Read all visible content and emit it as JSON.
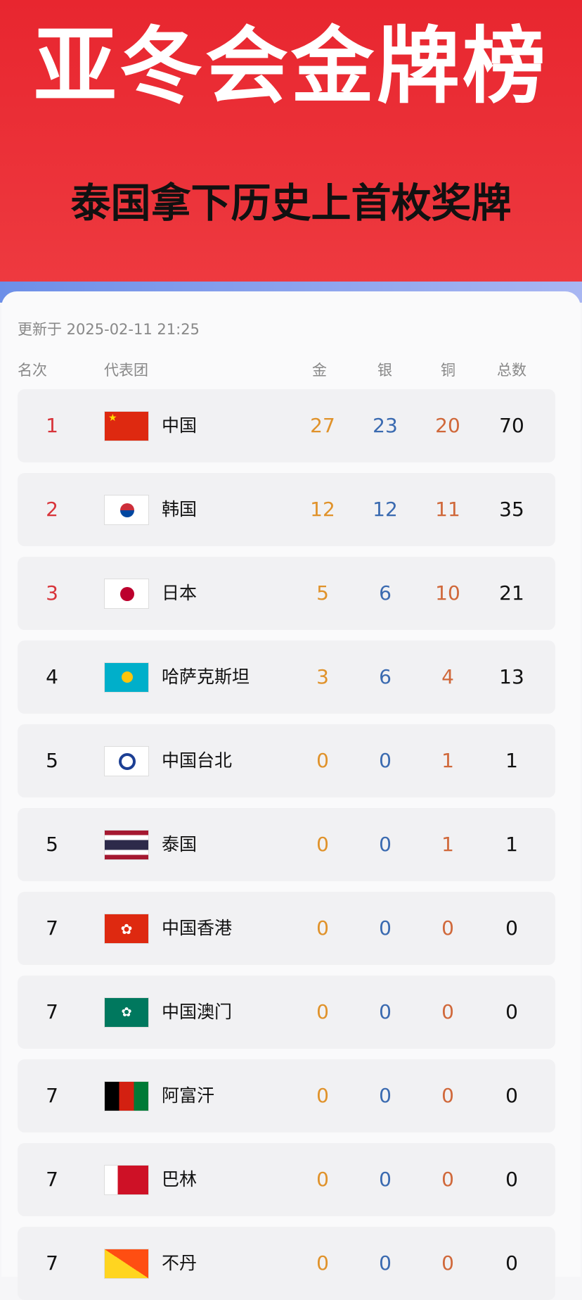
{
  "header": {
    "title": "亚冬会金牌榜",
    "subtitle": "泰国拿下历史上首枚奖牌"
  },
  "updated": "更新于 2025-02-11 21:25",
  "columns": {
    "rank": "名次",
    "team": "代表团",
    "gold": "金",
    "silver": "银",
    "bronze": "铜",
    "total": "总数"
  },
  "colors": {
    "banner": "#e8262f",
    "rank_top3": "#d8343a",
    "gold": "#e0922a",
    "silver": "#3a6ab0",
    "bronze": "#d0683a"
  },
  "rows": [
    {
      "rank": "1",
      "team": "中国",
      "flag": "china-flag",
      "gold": "27",
      "silver": "23",
      "bronze": "20",
      "total": "70"
    },
    {
      "rank": "2",
      "team": "韩国",
      "flag": "south-korea-flag",
      "gold": "12",
      "silver": "12",
      "bronze": "11",
      "total": "35"
    },
    {
      "rank": "3",
      "team": "日本",
      "flag": "japan-flag",
      "gold": "5",
      "silver": "6",
      "bronze": "10",
      "total": "21"
    },
    {
      "rank": "4",
      "team": "哈萨克斯坦",
      "flag": "kazakhstan-flag",
      "gold": "3",
      "silver": "6",
      "bronze": "4",
      "total": "13"
    },
    {
      "rank": "5",
      "team": "中国台北",
      "flag": "chinese-taipei-flag",
      "gold": "0",
      "silver": "0",
      "bronze": "1",
      "total": "1"
    },
    {
      "rank": "5",
      "team": "泰国",
      "flag": "thailand-flag",
      "gold": "0",
      "silver": "0",
      "bronze": "1",
      "total": "1"
    },
    {
      "rank": "7",
      "team": "中国香港",
      "flag": "hong-kong-flag",
      "gold": "0",
      "silver": "0",
      "bronze": "0",
      "total": "0"
    },
    {
      "rank": "7",
      "team": "中国澳门",
      "flag": "macau-flag",
      "gold": "0",
      "silver": "0",
      "bronze": "0",
      "total": "0"
    },
    {
      "rank": "7",
      "team": "阿富汗",
      "flag": "afghanistan-flag",
      "gold": "0",
      "silver": "0",
      "bronze": "0",
      "total": "0"
    },
    {
      "rank": "7",
      "team": "巴林",
      "flag": "bahrain-flag",
      "gold": "0",
      "silver": "0",
      "bronze": "0",
      "total": "0"
    },
    {
      "rank": "7",
      "team": "不丹",
      "flag": "bhutan-flag",
      "gold": "0",
      "silver": "0",
      "bronze": "0",
      "total": "0"
    }
  ]
}
